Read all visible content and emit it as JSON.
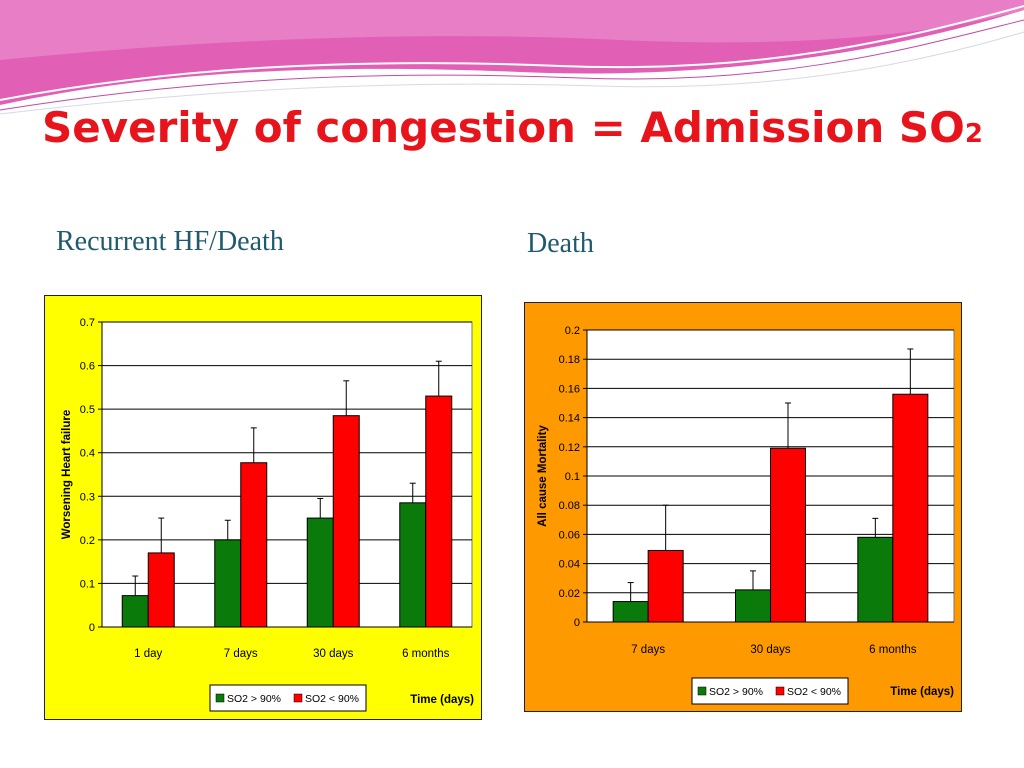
{
  "slide": {
    "title_main": "Severity of congestion = Admission SO",
    "title_sub": "2"
  },
  "captions": {
    "left": "Recurrent HF/Death",
    "right": "Death"
  },
  "colors": {
    "title": "#e8141b",
    "caption": "#1f5a6e",
    "series_so2_high": "#0a7a0a",
    "series_so2_low": "#ff0000",
    "left_panel_bg": "#ffff00",
    "right_panel_bg": "#ff9900"
  },
  "chart_data": [
    {
      "type": "bar",
      "title": "",
      "xlabel": "Time (days)",
      "ylabel": "Worsening Heart failure",
      "ylim": [
        0,
        0.7
      ],
      "yticks": [
        "0",
        "0.1",
        "0.2",
        "0.3",
        "0.4",
        "0.5",
        "0.6",
        "0.7"
      ],
      "categories": [
        "1 day",
        "7 days",
        "30 days",
        "6 months"
      ],
      "grid": true,
      "legend": "bottom",
      "series": [
        {
          "name": "SO2 > 90%",
          "color": "#0a7a0a",
          "values": [
            0.072,
            0.2,
            0.25,
            0.285
          ],
          "error": [
            0.045,
            0.045,
            0.045,
            0.045
          ]
        },
        {
          "name": "SO2 < 90%",
          "color": "#ff0000",
          "values": [
            0.17,
            0.377,
            0.485,
            0.53
          ],
          "error": [
            0.08,
            0.08,
            0.08,
            0.08
          ]
        }
      ]
    },
    {
      "type": "bar",
      "title": "",
      "xlabel": "Time (days)",
      "ylabel": "All cause Mortality",
      "ylim": [
        0,
        0.2
      ],
      "yticks": [
        "0",
        "0.02",
        "0.04",
        "0.06",
        "0.08",
        "0.1",
        "0.12",
        "0.14",
        "0.16",
        "0.18",
        "0.2"
      ],
      "categories": [
        "7 days",
        "30 days",
        "6 months"
      ],
      "grid": true,
      "legend": "bottom",
      "series": [
        {
          "name": "SO2 > 90%",
          "color": "#0a7a0a",
          "values": [
            0.014,
            0.022,
            0.058
          ],
          "error": [
            0.013,
            0.013,
            0.013
          ]
        },
        {
          "name": "SO2 < 90%",
          "color": "#ff0000",
          "values": [
            0.049,
            0.119,
            0.156
          ],
          "error": [
            0.031,
            0.031,
            0.031
          ]
        }
      ]
    }
  ]
}
